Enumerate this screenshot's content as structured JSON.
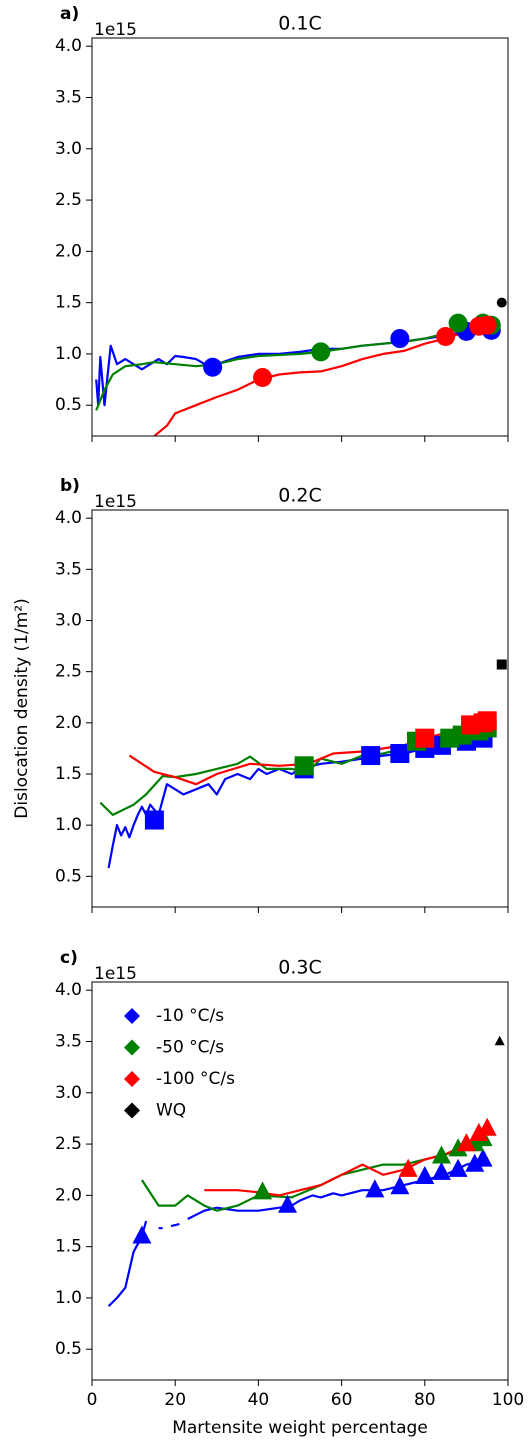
{
  "chart_data": [
    {
      "type": "line",
      "panel_label": "a)",
      "title": "0.1C",
      "offset_label": "1e15",
      "marker": "circle",
      "xlim": [
        0,
        100
      ],
      "ylim": [
        0.2,
        4.08
      ],
      "xticks": [
        0,
        20,
        40,
        60,
        80,
        100
      ],
      "yticks": [
        0.5,
        {
          "value": 1.0,
          "label": "1.0"
        },
        1.5,
        {
          "value": 2.0,
          "label": "2.0"
        },
        2.5,
        {
          "value": 3.0,
          "label": "3.0"
        },
        3.5,
        {
          "value": 4.0,
          "label": "4.0"
        }
      ],
      "series": [
        {
          "style": "line",
          "color": "#0000ff",
          "x": [
            1,
            1.5,
            2,
            3,
            4.5,
            6,
            8,
            10,
            12,
            14,
            16,
            18,
            20,
            22,
            25,
            28,
            30,
            35,
            40,
            45,
            50,
            55,
            60,
            65,
            70,
            75,
            80,
            85,
            90,
            95,
            97
          ],
          "values": [
            0.75,
            0.5,
            0.97,
            0.5,
            1.08,
            0.9,
            0.95,
            0.9,
            0.85,
            0.9,
            0.95,
            0.9,
            0.98,
            0.97,
            0.95,
            0.88,
            0.9,
            0.97,
            1.0,
            1.0,
            1.02,
            1.05,
            1.05,
            1.08,
            1.1,
            1.12,
            1.15,
            1.18,
            1.22,
            1.25,
            1.23
          ]
        },
        {
          "style": "line",
          "color": "#008000",
          "x": [
            1,
            3,
            5,
            8,
            12,
            15,
            20,
            25,
            30,
            35,
            40,
            50,
            55,
            60,
            65,
            70,
            75,
            80,
            85,
            88,
            92,
            95
          ],
          "values": [
            0.45,
            0.65,
            0.8,
            0.88,
            0.9,
            0.92,
            0.9,
            0.88,
            0.9,
            0.95,
            0.98,
            1.0,
            1.02,
            1.05,
            1.08,
            1.1,
            1.12,
            1.15,
            1.2,
            1.28,
            1.3,
            1.3
          ]
        },
        {
          "style": "line",
          "color": "#ff0000",
          "x": [
            15,
            18,
            20,
            25,
            30,
            35,
            40,
            45,
            50,
            55,
            60,
            65,
            70,
            75,
            80,
            85,
            90,
            93,
            96
          ],
          "values": [
            0.2,
            0.3,
            0.42,
            0.5,
            0.58,
            0.65,
            0.75,
            0.8,
            0.82,
            0.83,
            0.88,
            0.95,
            1.0,
            1.03,
            1.1,
            1.15,
            1.22,
            1.25,
            1.28
          ]
        },
        {
          "style": "marker",
          "color": "#0000ff",
          "x": [
            29,
            74,
            90,
            96
          ],
          "values": [
            0.87,
            1.15,
            1.22,
            1.23
          ]
        },
        {
          "style": "marker",
          "color": "#008000",
          "x": [
            55,
            88,
            94,
            96
          ],
          "values": [
            1.02,
            1.3,
            1.3,
            1.28
          ]
        },
        {
          "style": "marker",
          "color": "#ff0000",
          "x": [
            41,
            85,
            93,
            95
          ],
          "values": [
            0.77,
            1.17,
            1.27,
            1.28
          ]
        },
        {
          "style": "marker",
          "size": "small",
          "color": "#000000",
          "x": [
            98.5
          ],
          "values": [
            1.5
          ]
        }
      ]
    },
    {
      "type": "line",
      "panel_label": "b)",
      "title": "0.2C",
      "offset_label": "1e15",
      "marker": "square",
      "ylabel": "Dislocation density (1/m²)",
      "xlim": [
        0,
        100
      ],
      "ylim": [
        0.2,
        4.08
      ],
      "xticks": [
        0,
        20,
        40,
        60,
        80,
        100
      ],
      "yticks": [
        0.5,
        {
          "value": 1.0,
          "label": "1.0"
        },
        1.5,
        {
          "value": 2.0,
          "label": "2.0"
        },
        2.5,
        {
          "value": 3.0,
          "label": "3.0"
        },
        3.5,
        {
          "value": 4.0,
          "label": "4.0"
        }
      ],
      "series": [
        {
          "style": "line",
          "color": "#0000ff",
          "x": [
            4,
            5,
            6,
            7,
            8,
            9,
            10,
            11,
            12,
            13,
            14,
            16,
            18,
            20,
            22,
            25,
            28,
            30,
            32,
            35,
            38,
            40,
            42,
            45,
            48,
            50,
            55,
            60,
            65,
            70,
            75,
            80,
            85,
            90,
            94
          ],
          "values": [
            0.58,
            0.8,
            1.0,
            0.9,
            0.98,
            0.88,
            1.0,
            1.1,
            1.18,
            1.1,
            1.2,
            1.1,
            1.4,
            1.35,
            1.3,
            1.35,
            1.4,
            1.3,
            1.45,
            1.5,
            1.45,
            1.55,
            1.5,
            1.55,
            1.5,
            1.55,
            1.6,
            1.62,
            1.65,
            1.68,
            1.7,
            1.75,
            1.78,
            1.82,
            1.85
          ]
        },
        {
          "style": "line",
          "color": "#008000",
          "x": [
            2,
            5,
            10,
            13,
            17,
            20,
            25,
            30,
            35,
            38,
            42,
            48,
            52,
            55,
            60,
            65,
            70,
            75,
            80,
            85,
            90,
            95
          ],
          "values": [
            1.22,
            1.1,
            1.2,
            1.3,
            1.48,
            1.47,
            1.5,
            1.55,
            1.6,
            1.67,
            1.55,
            1.55,
            1.52,
            1.65,
            1.6,
            1.68,
            1.7,
            1.75,
            1.8,
            1.85,
            1.9,
            1.95
          ]
        },
        {
          "style": "line",
          "color": "#ff0000",
          "x": [
            9,
            15,
            20,
            25,
            30,
            38,
            45,
            52,
            58,
            65,
            70,
            75,
            80,
            85,
            90,
            95
          ],
          "values": [
            1.68,
            1.52,
            1.47,
            1.4,
            1.5,
            1.6,
            1.58,
            1.6,
            1.7,
            1.72,
            1.75,
            1.78,
            1.85,
            1.9,
            1.95,
            2.0
          ]
        },
        {
          "style": "marker",
          "color": "#0000ff",
          "x": [
            15,
            51,
            67,
            74,
            80,
            84,
            90,
            94
          ],
          "values": [
            1.05,
            1.55,
            1.68,
            1.7,
            1.75,
            1.78,
            1.82,
            1.85
          ]
        },
        {
          "style": "marker",
          "color": "#008000",
          "x": [
            51,
            78,
            86,
            89,
            93,
            95
          ],
          "values": [
            1.58,
            1.82,
            1.85,
            1.88,
            1.92,
            1.95
          ]
        },
        {
          "style": "marker",
          "color": "#ff0000",
          "x": [
            80,
            91,
            94,
            95
          ],
          "values": [
            1.85,
            1.98,
            2.0,
            2.02
          ]
        },
        {
          "style": "marker",
          "size": "small",
          "color": "#000000",
          "x": [
            98.5
          ],
          "values": [
            2.57
          ]
        }
      ]
    },
    {
      "type": "line",
      "panel_label": "c)",
      "title": "0.3C",
      "offset_label": "1e15",
      "marker": "triangle",
      "xlabel": "Martensite weight percentage",
      "xlim": [
        0,
        100
      ],
      "ylim": [
        0.2,
        4.08
      ],
      "xticks": [
        0,
        20,
        40,
        60,
        80,
        100
      ],
      "yticks": [
        0.5,
        {
          "value": 1.0,
          "label": "1.0"
        },
        1.5,
        {
          "value": 2.0,
          "label": "2.0"
        },
        2.5,
        {
          "value": 3.0,
          "label": "3.0"
        },
        3.5,
        {
          "value": 4.0,
          "label": "4.0"
        }
      ],
      "legend": {
        "loc": "upper left",
        "marker": "diamond",
        "entries": [
          {
            "name": "-10 °C/s",
            "color": "#0000ff"
          },
          {
            "name": "-50 °C/s",
            "color": "#008000"
          },
          {
            "name": "-100 °C/s",
            "color": "#ff0000"
          },
          {
            "name": "WQ",
            "color": "#000000"
          }
        ]
      },
      "series": [
        {
          "style": "line",
          "color": "#0000ff",
          "x": [
            4,
            6,
            8,
            10,
            12,
            13,
            null,
            16,
            17,
            null,
            19,
            21,
            null,
            23,
            27,
            30,
            35,
            40,
            45,
            48,
            50,
            53,
            55,
            58,
            60,
            65,
            70,
            75,
            80,
            85,
            90,
            95
          ],
          "values": [
            0.92,
            1.0,
            1.1,
            1.45,
            1.6,
            1.75,
            null,
            1.68,
            1.68,
            null,
            1.7,
            1.72,
            null,
            1.77,
            1.85,
            1.88,
            1.85,
            1.85,
            1.88,
            1.9,
            1.95,
            2.0,
            1.98,
            2.02,
            2.0,
            2.05,
            2.05,
            2.1,
            2.15,
            2.2,
            2.3,
            2.35
          ]
        },
        {
          "style": "line",
          "color": "#008000",
          "x": [
            12,
            16,
            20,
            23,
            27,
            30,
            35,
            40,
            48,
            55,
            60,
            65,
            70,
            75,
            80,
            85,
            90,
            95
          ],
          "values": [
            2.15,
            1.9,
            1.9,
            2.0,
            1.9,
            1.85,
            1.9,
            2.0,
            1.98,
            2.1,
            2.2,
            2.25,
            2.3,
            2.3,
            2.35,
            2.4,
            2.45,
            2.5
          ]
        },
        {
          "style": "line",
          "color": "#ff0000",
          "x": [
            27,
            35,
            40,
            45,
            50,
            55,
            60,
            65,
            70,
            75,
            80,
            85,
            90,
            95
          ],
          "values": [
            2.05,
            2.05,
            2.03,
            2.0,
            2.05,
            2.1,
            2.2,
            2.3,
            2.2,
            2.25,
            2.35,
            2.4,
            2.5,
            2.6
          ]
        },
        {
          "style": "marker",
          "color": "#0000ff",
          "x": [
            12,
            47,
            68,
            74,
            80,
            84,
            88,
            92,
            94
          ],
          "values": [
            1.6,
            1.9,
            2.05,
            2.08,
            2.18,
            2.22,
            2.25,
            2.3,
            2.35
          ]
        },
        {
          "style": "marker",
          "color": "#008000",
          "x": [
            41,
            84,
            88,
            92,
            94
          ],
          "values": [
            2.03,
            2.38,
            2.45,
            2.5,
            2.55
          ]
        },
        {
          "style": "marker",
          "color": "#ff0000",
          "x": [
            76,
            90,
            93,
            95
          ],
          "values": [
            2.25,
            2.5,
            2.6,
            2.65
          ]
        },
        {
          "style": "marker",
          "size": "small",
          "color": "#000000",
          "x": [
            98
          ],
          "values": [
            3.5
          ]
        }
      ]
    }
  ]
}
